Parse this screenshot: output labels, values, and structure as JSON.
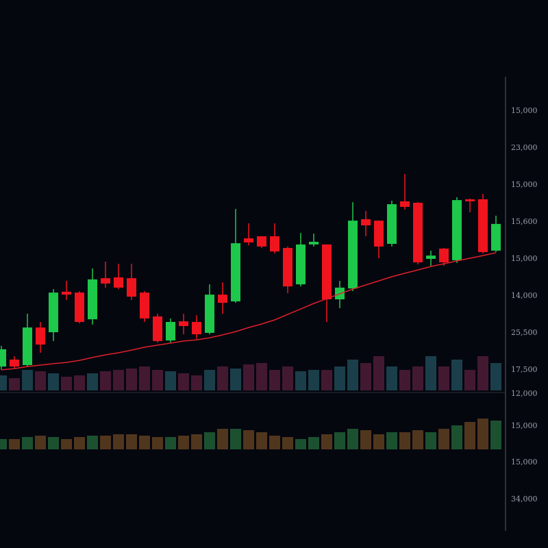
{
  "chart_data": {
    "type": "candlestick",
    "open": [
      8.3,
      11.7,
      9,
      27.3,
      25,
      44.7,
      44.3,
      31.3,
      51.3,
      51.7,
      51.3,
      44.3,
      32.7,
      21,
      30.3,
      30,
      24.7,
      43.3,
      40,
      70.7,
      71.7,
      71.7,
      66,
      48.3,
      67.7,
      67.7,
      41,
      46.3,
      80,
      79.3,
      68,
      88.7,
      88,
      60.7,
      65.7,
      60,
      89.7,
      89.7,
      64.7
    ],
    "high": [
      18.3,
      13.3,
      34,
      30,
      46,
      50,
      45,
      56,
      59.3,
      58.3,
      58.3,
      45,
      34,
      31.7,
      34,
      33.3,
      48.3,
      49.3,
      85,
      78,
      71.7,
      78,
      66.7,
      73.3,
      73,
      67.7,
      50,
      88.3,
      84,
      79.3,
      89,
      102,
      88.3,
      64.7,
      66,
      90.7,
      90,
      92.3,
      81.7
    ],
    "low": [
      6.7,
      7.3,
      8.3,
      15,
      20.7,
      40.7,
      29.3,
      28.7,
      46.7,
      46,
      40.7,
      30,
      20,
      20,
      24,
      21.7,
      24,
      34,
      39.3,
      67.3,
      66,
      63.3,
      44,
      47.3,
      66.7,
      30,
      36.7,
      45,
      71.7,
      61,
      66.7,
      84.7,
      58,
      57.3,
      57.3,
      58.7,
      83.3,
      63.3,
      64
    ],
    "close": [
      16.7,
      8.3,
      27.3,
      19,
      44.3,
      43.3,
      30,
      50.7,
      48.7,
      46.7,
      42.3,
      31.7,
      20.7,
      30,
      28,
      24,
      43.3,
      39.3,
      68.3,
      68.7,
      66.7,
      64.3,
      47.3,
      67.7,
      69,
      41,
      46.7,
      79.3,
      77,
      66.7,
      87.3,
      86,
      59,
      62.3,
      59,
      89.3,
      88.7,
      64,
      77.7
    ],
    "moving_average": [
      6.7,
      7.3,
      8.3,
      9,
      9.7,
      10.3,
      11.3,
      12.7,
      14,
      15,
      16.3,
      17.7,
      18.7,
      19.7,
      20.7,
      21.3,
      22.3,
      23.7,
      25.3,
      27.3,
      29,
      31,
      33.7,
      36.3,
      39,
      41.3,
      43.7,
      46,
      48,
      50,
      52,
      53.7,
      55.3,
      57,
      58.3,
      59.7,
      61,
      62.3,
      63.7
    ],
    "volume": [
      22,
      18,
      30,
      28,
      25,
      20,
      22,
      25,
      28,
      30,
      32,
      35,
      30,
      28,
      25,
      22,
      30,
      35,
      32,
      38,
      40,
      30,
      35,
      28,
      30,
      30,
      35,
      45,
      40,
      50,
      35,
      30,
      35,
      50,
      35,
      45,
      30,
      50,
      40
    ],
    "indicator": [
      15,
      15,
      18,
      20,
      18,
      15,
      18,
      20,
      20,
      22,
      22,
      20,
      18,
      18,
      20,
      22,
      25,
      30,
      30,
      28,
      25,
      20,
      18,
      15,
      18,
      22,
      25,
      30,
      28,
      22,
      25,
      25,
      28,
      25,
      30,
      35,
      40,
      45,
      42
    ],
    "ylim": [
      0,
      120
    ],
    "up_color": "#1ec84a",
    "down_color": "#f0141e",
    "ma_color": "#e0202a",
    "price_axis_labels": [
      "15,000",
      "23,000",
      "15,000",
      "15,600",
      "15,000",
      "14,000",
      "25,500",
      "17,500",
      "12,000",
      "15,000",
      "15,000",
      "34,000"
    ]
  }
}
